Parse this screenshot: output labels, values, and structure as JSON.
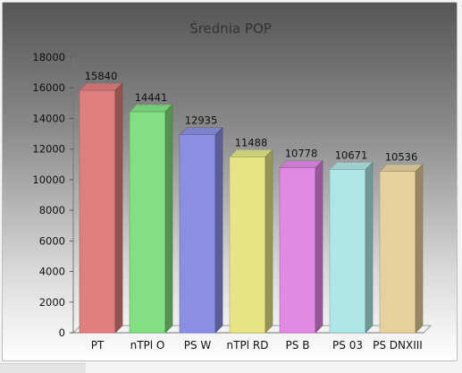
{
  "chart_data": {
    "type": "bar",
    "title": "Średnia POP",
    "categories": [
      "PT",
      "nTPl O",
      "PS W",
      "nTPl RD",
      "PS B",
      "PS 03",
      "PS DNXIII"
    ],
    "values": [
      15840,
      14441,
      12935,
      11488,
      10778,
      10671,
      10536
    ],
    "colors": [
      "#e07f7f",
      "#83df83",
      "#8a8fe3",
      "#e6e585",
      "#e289e4",
      "#aee7e6",
      "#e6d19e"
    ],
    "ylim": [
      0,
      18000
    ],
    "yticks": [
      0,
      2000,
      4000,
      6000,
      8000,
      10000,
      12000,
      14000,
      16000,
      18000
    ],
    "grid": false,
    "legend": "none",
    "three_d": true
  }
}
